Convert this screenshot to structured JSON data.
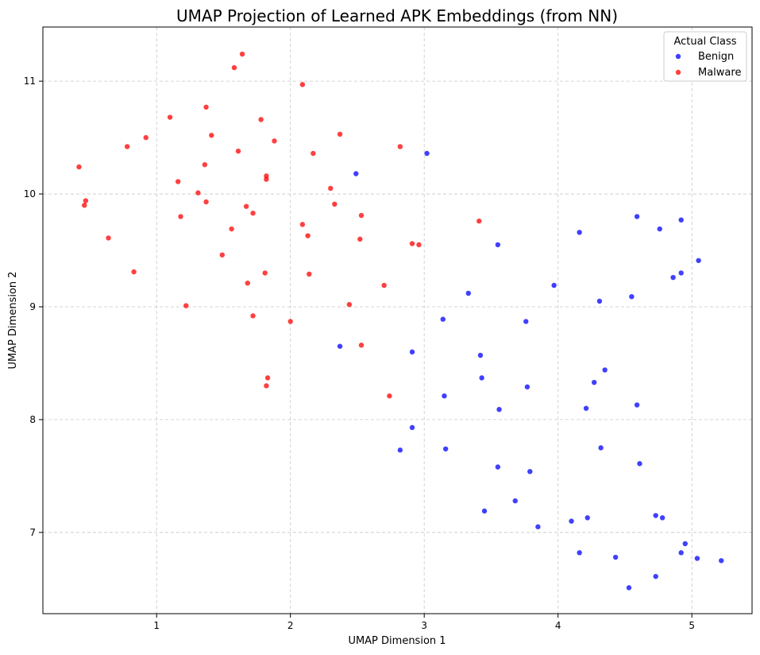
{
  "chart_data": {
    "type": "scatter",
    "title": "UMAP Projection of Learned APK Embeddings (from NN)",
    "xlabel": "UMAP Dimension 1",
    "ylabel": "UMAP Dimension 2",
    "xlim": [
      0.15,
      5.45
    ],
    "ylim": [
      6.28,
      11.48
    ],
    "xticks": [
      1,
      2,
      3,
      4,
      5
    ],
    "yticks": [
      7,
      8,
      9,
      10,
      11
    ],
    "grid": true,
    "legend": {
      "title": "Actual Class",
      "position": "top-right"
    },
    "series": [
      {
        "name": "Benign",
        "color": "#0000ff",
        "points": [
          [
            2.49,
            10.18
          ],
          [
            3.02,
            10.36
          ],
          [
            3.55,
            9.55
          ],
          [
            4.16,
            9.66
          ],
          [
            4.59,
            9.8
          ],
          [
            4.76,
            9.69
          ],
          [
            4.92,
            9.77
          ],
          [
            5.05,
            9.41
          ],
          [
            4.92,
            9.3
          ],
          [
            4.86,
            9.26
          ],
          [
            3.97,
            9.19
          ],
          [
            3.33,
            9.12
          ],
          [
            4.31,
            9.05
          ],
          [
            4.55,
            9.09
          ],
          [
            3.14,
            8.89
          ],
          [
            3.76,
            8.87
          ],
          [
            2.37,
            8.65
          ],
          [
            2.91,
            8.6
          ],
          [
            3.42,
            8.57
          ],
          [
            3.43,
            8.37
          ],
          [
            4.35,
            8.44
          ],
          [
            4.27,
            8.33
          ],
          [
            3.77,
            8.29
          ],
          [
            3.15,
            8.21
          ],
          [
            3.56,
            8.09
          ],
          [
            4.21,
            8.1
          ],
          [
            4.59,
            8.13
          ],
          [
            2.91,
            7.93
          ],
          [
            2.82,
            7.73
          ],
          [
            3.16,
            7.74
          ],
          [
            4.32,
            7.75
          ],
          [
            3.55,
            7.58
          ],
          [
            4.61,
            7.61
          ],
          [
            3.79,
            7.54
          ],
          [
            3.68,
            7.28
          ],
          [
            3.45,
            7.19
          ],
          [
            4.22,
            7.13
          ],
          [
            4.73,
            7.15
          ],
          [
            4.78,
            7.13
          ],
          [
            3.85,
            7.05
          ],
          [
            4.1,
            7.1
          ],
          [
            4.95,
            6.9
          ],
          [
            4.16,
            6.82
          ],
          [
            4.43,
            6.78
          ],
          [
            4.92,
            6.82
          ],
          [
            5.04,
            6.77
          ],
          [
            5.22,
            6.75
          ],
          [
            4.73,
            6.61
          ],
          [
            4.53,
            6.51
          ]
        ]
      },
      {
        "name": "Malware",
        "color": "#ff0000",
        "points": [
          [
            1.64,
            11.24
          ],
          [
            1.58,
            11.12
          ],
          [
            2.09,
            10.97
          ],
          [
            1.37,
            10.77
          ],
          [
            1.1,
            10.68
          ],
          [
            1.78,
            10.66
          ],
          [
            0.92,
            10.5
          ],
          [
            1.41,
            10.52
          ],
          [
            2.37,
            10.53
          ],
          [
            1.88,
            10.47
          ],
          [
            0.78,
            10.42
          ],
          [
            2.82,
            10.42
          ],
          [
            1.61,
            10.38
          ],
          [
            2.17,
            10.36
          ],
          [
            0.42,
            10.24
          ],
          [
            1.36,
            10.26
          ],
          [
            1.82,
            10.16
          ],
          [
            1.82,
            10.13
          ],
          [
            1.16,
            10.11
          ],
          [
            2.3,
            10.05
          ],
          [
            1.31,
            10.01
          ],
          [
            0.47,
            9.94
          ],
          [
            0.46,
            9.9
          ],
          [
            1.37,
            9.93
          ],
          [
            2.33,
            9.91
          ],
          [
            1.67,
            9.89
          ],
          [
            1.72,
            9.83
          ],
          [
            2.53,
            9.81
          ],
          [
            1.18,
            9.8
          ],
          [
            2.09,
            9.73
          ],
          [
            1.56,
            9.69
          ],
          [
            3.41,
            9.76
          ],
          [
            2.13,
            9.63
          ],
          [
            0.64,
            9.61
          ],
          [
            2.52,
            9.6
          ],
          [
            2.91,
            9.56
          ],
          [
            2.96,
            9.55
          ],
          [
            1.49,
            9.46
          ],
          [
            0.83,
            9.31
          ],
          [
            1.81,
            9.3
          ],
          [
            2.14,
            9.29
          ],
          [
            1.68,
            9.21
          ],
          [
            2.7,
            9.19
          ],
          [
            1.22,
            9.01
          ],
          [
            2.44,
            9.02
          ],
          [
            1.72,
            8.92
          ],
          [
            2.0,
            8.87
          ],
          [
            2.53,
            8.66
          ],
          [
            1.83,
            8.37
          ],
          [
            1.82,
            8.3
          ],
          [
            2.74,
            8.21
          ]
        ]
      }
    ]
  }
}
